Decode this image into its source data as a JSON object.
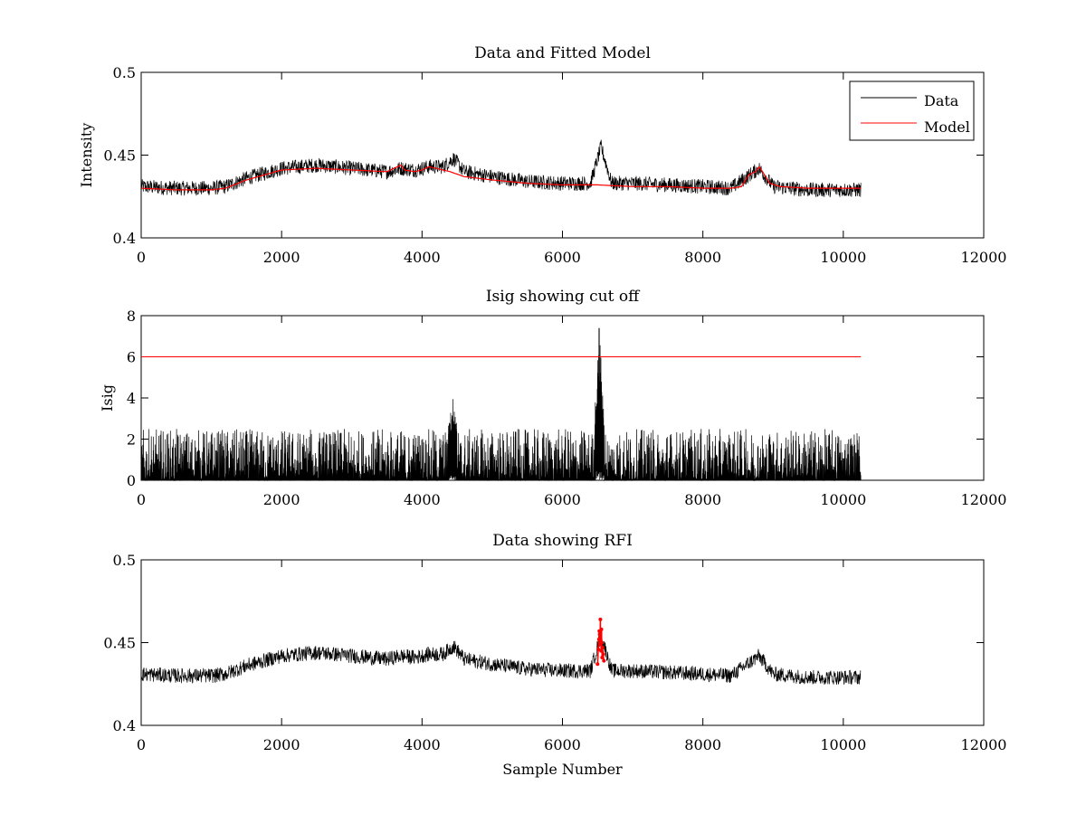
{
  "chart_data": [
    {
      "type": "line",
      "title": "Data and Fitted Model",
      "xlabel": "",
      "ylabel": "Intensity",
      "xlim": [
        0,
        12000
      ],
      "ylim": [
        0.4,
        0.5
      ],
      "xticks": [
        0,
        2000,
        4000,
        6000,
        8000,
        10000,
        12000
      ],
      "yticks": [
        0.4,
        0.45,
        0.5
      ],
      "xtick_labels": [
        "0",
        "2000",
        "4000",
        "6000",
        "8000",
        "10000",
        "12000"
      ],
      "ytick_labels": [
        "0.4",
        "0.45",
        "0.5"
      ],
      "legend": {
        "placement": "top-right",
        "entries": [
          "Data",
          "Model"
        ]
      },
      "colors": {
        "Data": "#000000",
        "Model": "#ff0000"
      },
      "series": [
        {
          "name": "Data",
          "noise_amplitude": 0.0045,
          "x": [
            0,
            500,
            1000,
            1200,
            1500,
            2000,
            2500,
            3000,
            3500,
            3700,
            3900,
            4100,
            4300,
            4450,
            4600,
            5000,
            5500,
            6000,
            6400,
            6550,
            6700,
            7000,
            7500,
            8000,
            8400,
            8600,
            8800,
            9000,
            9500,
            10000,
            10250
          ],
          "y": [
            0.431,
            0.43,
            0.43,
            0.431,
            0.436,
            0.442,
            0.444,
            0.442,
            0.44,
            0.442,
            0.441,
            0.443,
            0.443,
            0.448,
            0.44,
            0.437,
            0.434,
            0.433,
            0.433,
            0.455,
            0.433,
            0.433,
            0.432,
            0.431,
            0.43,
            0.436,
            0.442,
            0.431,
            0.429,
            0.429,
            0.429
          ]
        },
        {
          "name": "Model",
          "x": [
            0,
            500,
            1000,
            1200,
            1500,
            2000,
            2500,
            3000,
            3500,
            3650,
            3700,
            3750,
            3900,
            4000,
            4100,
            4200,
            4300,
            4400,
            4600,
            5000,
            5500,
            6000,
            6500,
            7000,
            7500,
            8000,
            8400,
            8550,
            8650,
            8750,
            8800,
            8850,
            8950,
            9100,
            9500,
            10000,
            10250
          ],
          "y": [
            0.43,
            0.429,
            0.429,
            0.43,
            0.435,
            0.441,
            0.442,
            0.441,
            0.44,
            0.443,
            0.444,
            0.441,
            0.44,
            0.441,
            0.443,
            0.442,
            0.441,
            0.44,
            0.437,
            0.435,
            0.433,
            0.432,
            0.432,
            0.431,
            0.431,
            0.43,
            0.43,
            0.431,
            0.438,
            0.44,
            0.443,
            0.44,
            0.433,
            0.431,
            0.43,
            0.43,
            0.43
          ]
        }
      ]
    },
    {
      "type": "line",
      "title": "Isig showing cut off",
      "xlabel": "",
      "ylabel": "Isig",
      "xlim": [
        0,
        12000
      ],
      "ylim": [
        0,
        8
      ],
      "xticks": [
        0,
        2000,
        4000,
        6000,
        8000,
        10000,
        12000
      ],
      "yticks": [
        0,
        2,
        4,
        6,
        8
      ],
      "xtick_labels": [
        "0",
        "2000",
        "4000",
        "6000",
        "8000",
        "10000",
        "12000"
      ],
      "ytick_labels": [
        "0",
        "2",
        "4",
        "6",
        "8"
      ],
      "colors": {
        "signal": "#000000",
        "cutoff": "#ff0000"
      },
      "series": [
        {
          "x": [
            0,
            2000,
            4000,
            4350,
            4450,
            4520,
            6000,
            6450,
            6520,
            6600,
            10250
          ],
          "y_max": [
            2.5,
            2.5,
            2.5,
            2.5,
            4.2,
            2.5,
            2.5,
            2.5,
            7.9,
            2.5,
            2.5
          ]
        },
        {
          "x": [
            0,
            10250
          ],
          "y": [
            6,
            6
          ]
        }
      ]
    },
    {
      "type": "line",
      "title": "Data showing RFI",
      "xlabel": "Sample Number",
      "ylabel": "",
      "xlim": [
        0,
        12000
      ],
      "ylim": [
        0.4,
        0.5
      ],
      "xticks": [
        0,
        2000,
        4000,
        6000,
        8000,
        10000,
        12000
      ],
      "yticks": [
        0.4,
        0.45,
        0.5
      ],
      "xtick_labels": [
        "0",
        "2000",
        "4000",
        "6000",
        "8000",
        "10000",
        "12000"
      ],
      "ytick_labels": [
        "0.4",
        "0.45",
        "0.5"
      ],
      "colors": {
        "data": "#000000",
        "rfi": "#ff0000"
      },
      "series": [
        {
          "noise_amplitude": 0.0045,
          "x": [
            0,
            500,
            1000,
            1200,
            1500,
            2000,
            2500,
            3000,
            3500,
            3700,
            3900,
            4100,
            4300,
            4450,
            4600,
            5000,
            5500,
            6000,
            6400,
            6550,
            6700,
            7000,
            7500,
            8000,
            8400,
            8600,
            8800,
            9000,
            9500,
            10000,
            10250
          ],
          "y": [
            0.431,
            0.43,
            0.43,
            0.431,
            0.436,
            0.442,
            0.444,
            0.442,
            0.44,
            0.442,
            0.441,
            0.443,
            0.443,
            0.448,
            0.44,
            0.437,
            0.434,
            0.433,
            0.433,
            0.455,
            0.433,
            0.433,
            0.432,
            0.431,
            0.43,
            0.436,
            0.442,
            0.431,
            0.429,
            0.429,
            0.429
          ]
        },
        {
          "x": [
            6500,
            6510,
            6520,
            6525,
            6530,
            6535,
            6540,
            6545,
            6550,
            6555,
            6560,
            6565,
            6570,
            6580,
            6590
          ],
          "y": [
            0.437,
            0.446,
            0.452,
            0.457,
            0.455,
            0.449,
            0.464,
            0.451,
            0.445,
            0.458,
            0.45,
            0.441,
            0.447,
            0.443,
            0.439
          ]
        }
      ]
    }
  ]
}
